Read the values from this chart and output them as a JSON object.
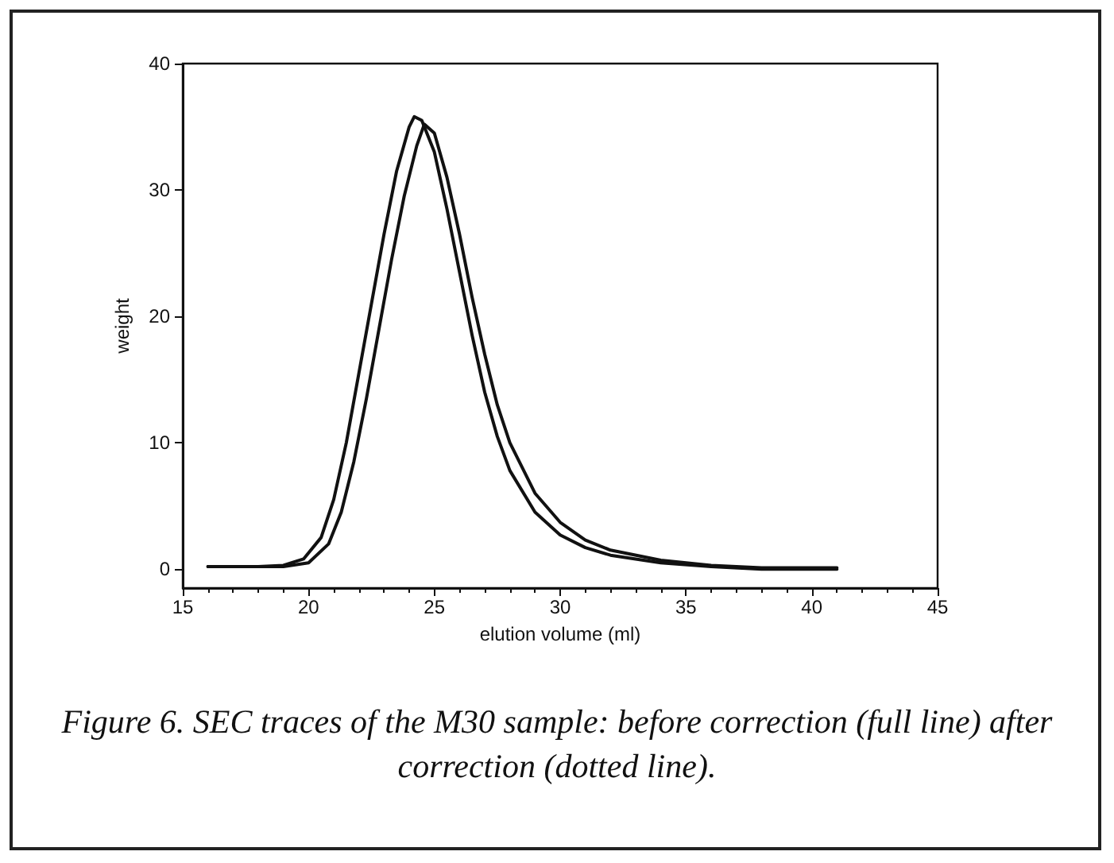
{
  "chart_data": {
    "type": "line",
    "xlabel": "elution volume (ml)",
    "ylabel": "weight",
    "xlim": [
      15,
      45
    ],
    "xticks": [
      15,
      20,
      25,
      30,
      35,
      40,
      45
    ],
    "ylim": [
      -1.5,
      40
    ],
    "yticks": [
      0,
      10,
      20,
      30,
      40
    ],
    "grid": false,
    "legend": false,
    "marker": "none",
    "line_style": "solid",
    "annotations": [
      "Figure 6. SEC traces of the M30 sample: before correction (full line) after correction (dotted line)."
    ],
    "series": [
      {
        "color": "#111111",
        "x": [
          16,
          18,
          19,
          19.8,
          20.5,
          21,
          21.5,
          22,
          22.5,
          23,
          23.5,
          24,
          24.2,
          24.5,
          25,
          25.5,
          26,
          26.5,
          27,
          27.5,
          28,
          29,
          30,
          31,
          32,
          34,
          36,
          38,
          41
        ],
        "values": [
          0.2,
          0.2,
          0.3,
          0.8,
          2.5,
          5.5,
          10,
          15.5,
          21,
          26.5,
          31.5,
          35,
          35.8,
          35.5,
          33,
          28.5,
          23.5,
          18.5,
          14,
          10.5,
          7.8,
          4.5,
          2.7,
          1.7,
          1.1,
          0.5,
          0.2,
          0,
          0
        ]
      },
      {
        "color": "#111111",
        "x": [
          16,
          19,
          20,
          20.8,
          21.3,
          21.8,
          22.3,
          22.8,
          23.3,
          23.8,
          24.3,
          24.6,
          25,
          25.5,
          26,
          26.5,
          27,
          27.5,
          28,
          29,
          30,
          31,
          32,
          34,
          36,
          38,
          41
        ],
        "values": [
          0.2,
          0.2,
          0.5,
          2,
          4.5,
          8.5,
          13.5,
          19,
          24.5,
          29.5,
          33.5,
          35.2,
          34.5,
          31,
          26.5,
          21.5,
          17,
          13,
          10,
          6,
          3.7,
          2.3,
          1.5,
          0.7,
          0.3,
          0.1,
          0.1
        ]
      }
    ]
  }
}
